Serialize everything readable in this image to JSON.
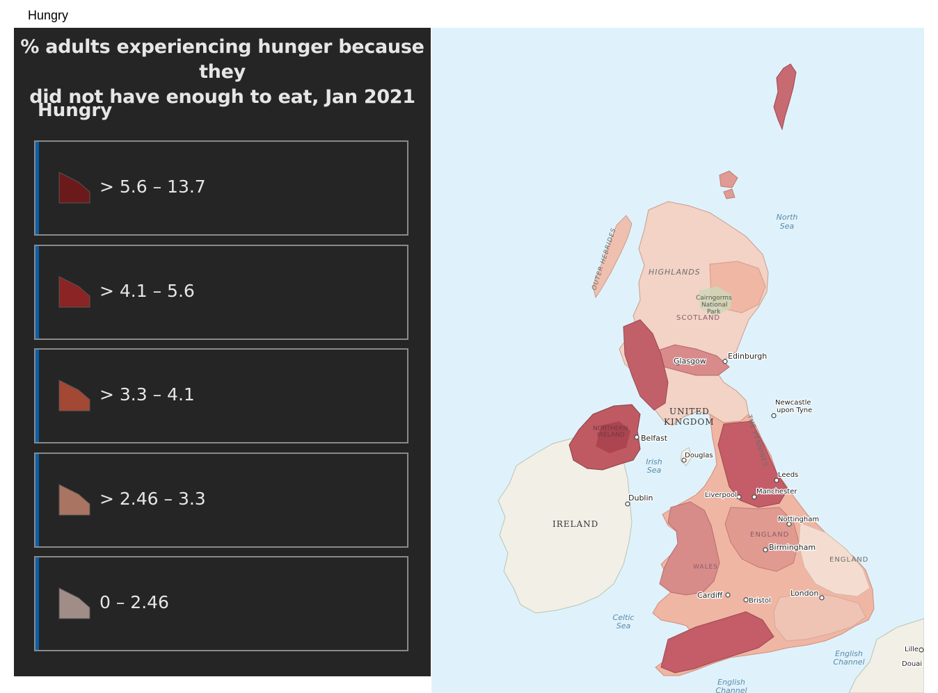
{
  "page": {
    "title": "Hungry"
  },
  "legend": {
    "title_line1": "% adults experiencing hunger because they",
    "title_line2": "did not have enough to eat, Jan 2021",
    "subtitle": "Hungry",
    "classes": [
      {
        "label": "> 5.6 – 13.7",
        "color": "#6b1a1c"
      },
      {
        "label": "> 4.1 – 5.6",
        "color": "#8b2424"
      },
      {
        "label": "> 3.3 – 4.1",
        "color": "#a24834"
      },
      {
        "label": "> 2.46 – 3.3",
        "color": "#a97462"
      },
      {
        "label": "0 – 2.46",
        "color": "#a08d88"
      }
    ]
  },
  "map": {
    "regions": {
      "highlands": "HIGHLANDS",
      "outer_hebrides": "OUTER HEBRIDES",
      "cairngorms_1": "Cairngorms",
      "cairngorms_2": "National",
      "cairngorms_3": "Park",
      "scotland": "SCOTLAND",
      "united": "UNITED",
      "kingdom": "KINGDOM",
      "northern": "NORTHERN",
      "ireland_ni": "IRELAND",
      "pennines": "THE PENNINES",
      "ireland": "IRELAND",
      "england_mid": "ENGLAND",
      "england_east": "ENGLAND",
      "wales": "WALES"
    },
    "seas": {
      "north_1": "North",
      "north_2": "Sea",
      "irish_1": "Irish",
      "irish_2": "Sea",
      "celtic_1": "Celtic",
      "celtic_2": "Sea",
      "english_ch_1": "English",
      "english_ch_2": "Channel",
      "english_ch_3": "English",
      "english_ch_4": "Channel"
    },
    "cities": {
      "glasgow": "Glasgow",
      "edinburgh": "Edinburgh",
      "newcastle_1": "Newcastle",
      "newcastle_2": "upon Tyne",
      "belfast": "Belfast",
      "douglas": "Douglas",
      "leeds": "Leeds",
      "manchester": "Manchester",
      "liverpool": "Liverpool",
      "dublin": "Dublin",
      "nottingham": "Nottingham",
      "birmingham": "Birmingham",
      "cardiff": "Cardiff",
      "bristol": "Bristol",
      "london": "London",
      "lille": "Lille",
      "douai": "Douai"
    }
  }
}
